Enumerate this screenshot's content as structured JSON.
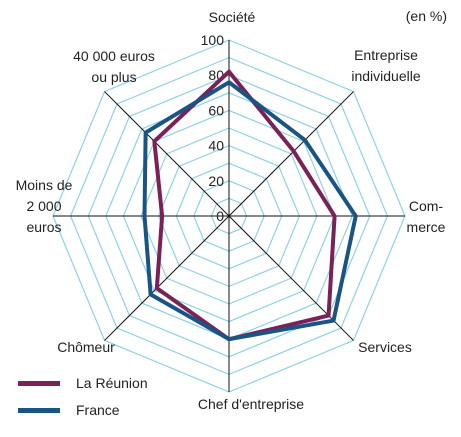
{
  "chart_data": {
    "type": "radar",
    "unit": "(en %)",
    "axes": [
      {
        "label": [
          "Société"
        ]
      },
      {
        "label": [
          "Entreprise",
          "individuelle"
        ]
      },
      {
        "label": [
          "Com-",
          "merce"
        ]
      },
      {
        "label": [
          "Services"
        ]
      },
      {
        "label": [
          "Chef d'entreprise"
        ]
      },
      {
        "label": [
          "Chômeur"
        ]
      },
      {
        "label": [
          "Moins de",
          "2 000",
          "euros"
        ]
      },
      {
        "label": [
          "40 000 euros",
          "ou plus"
        ]
      }
    ],
    "rlim": [
      0,
      100
    ],
    "ticks": [
      0,
      20,
      40,
      60,
      80,
      100
    ],
    "series": [
      {
        "name": "La Réunion",
        "color": "#7a2257",
        "values": [
          82,
          52,
          60,
          80,
          70,
          58,
          38,
          60
        ]
      },
      {
        "name": "France",
        "color": "#1a5484",
        "values": [
          76,
          61,
          72,
          84,
          70,
          63,
          48,
          67
        ]
      }
    ],
    "grid_color": "#8ed2e4"
  }
}
